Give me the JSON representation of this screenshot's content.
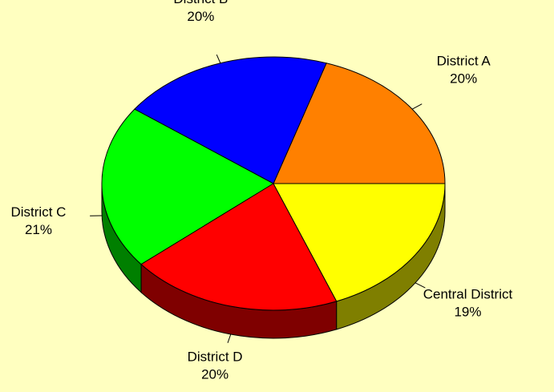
{
  "chart_data": {
    "type": "pie",
    "categories": [
      "District A",
      "District B",
      "District C",
      "District D",
      "Central District"
    ],
    "values": [
      20,
      20,
      21,
      20,
      19
    ],
    "value_labels": [
      "20%",
      "20%",
      "21%",
      "20%",
      "19%"
    ],
    "colors": [
      "#ff8000",
      "#0000ff",
      "#00ff00",
      "#ff0000",
      "#ffff00"
    ]
  }
}
